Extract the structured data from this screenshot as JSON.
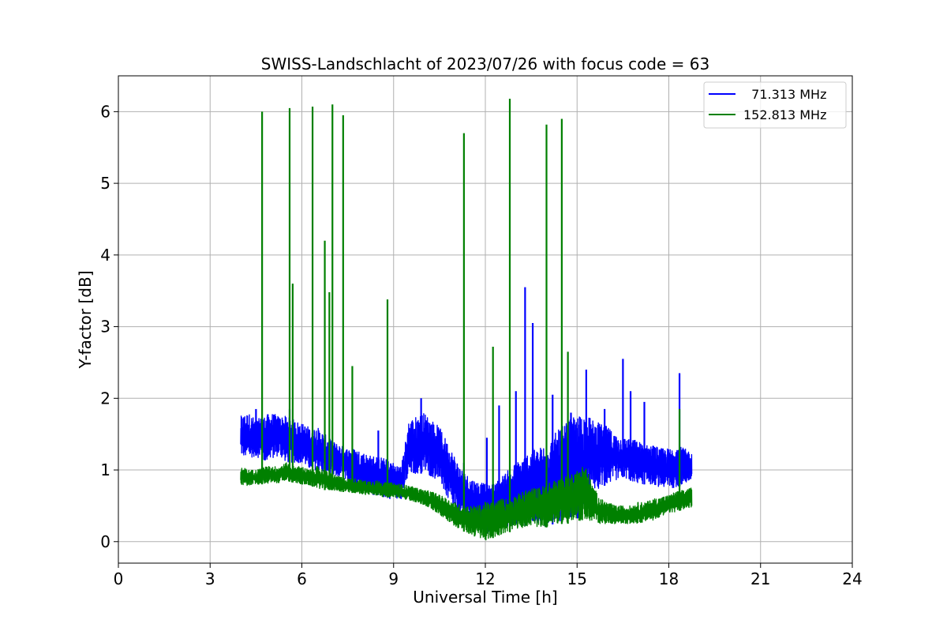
{
  "chart_data": {
    "type": "line",
    "title": "SWISS-Landschlacht of 2023/07/26 with focus code = 63",
    "xlabel": "Universal Time [h]",
    "ylabel": "Y-factor [dB]",
    "xlim": [
      0,
      24
    ],
    "ylim": [
      -0.3,
      6.5
    ],
    "xticks": [
      0,
      3,
      6,
      9,
      12,
      15,
      18,
      21,
      24
    ],
    "yticks": [
      0,
      1,
      2,
      3,
      4,
      5,
      6
    ],
    "grid": true,
    "legend_position": "top-right",
    "series": [
      {
        "name": "  71.313 MHz",
        "color": "#0000ff",
        "x": [
          4.0,
          4.25,
          4.5,
          4.75,
          5.0,
          5.25,
          5.5,
          5.75,
          6.0,
          6.25,
          6.5,
          6.75,
          7.0,
          7.25,
          7.5,
          7.75,
          8.0,
          8.25,
          8.5,
          8.75,
          9.0,
          9.25,
          9.5,
          9.75,
          10.0,
          10.25,
          10.5,
          10.75,
          11.0,
          11.25,
          11.5,
          11.75,
          12.0,
          12.25,
          12.5,
          12.75,
          13.0,
          13.25,
          13.5,
          13.75,
          14.0,
          14.25,
          14.5,
          14.75,
          15.0,
          15.25,
          15.5,
          15.75,
          16.0,
          16.25,
          16.5,
          16.75,
          17.0,
          17.25,
          17.5,
          17.75,
          18.0,
          18.25,
          18.5,
          18.75
        ],
        "y_low": [
          1.2,
          1.15,
          1.2,
          1.1,
          1.15,
          1.2,
          1.1,
          1.1,
          1.1,
          1.0,
          1.0,
          0.95,
          0.9,
          0.9,
          0.8,
          0.75,
          0.7,
          0.65,
          0.65,
          0.6,
          0.6,
          0.6,
          0.9,
          0.95,
          0.95,
          0.9,
          0.85,
          0.6,
          0.4,
          0.3,
          0.25,
          0.15,
          0.1,
          0.15,
          0.2,
          0.2,
          0.25,
          0.2,
          0.3,
          0.25,
          0.2,
          0.25,
          0.3,
          0.35,
          0.3,
          0.5,
          0.7,
          0.75,
          0.8,
          0.85,
          0.9,
          0.85,
          0.8,
          0.8,
          0.8,
          0.75,
          0.75,
          0.75,
          0.8,
          0.85
        ],
        "y_high": [
          1.75,
          1.8,
          1.7,
          1.75,
          1.8,
          1.75,
          1.75,
          1.7,
          1.65,
          1.6,
          1.6,
          1.5,
          1.4,
          1.35,
          1.3,
          1.3,
          1.25,
          1.2,
          1.2,
          1.15,
          1.1,
          1.05,
          1.7,
          1.75,
          1.8,
          1.7,
          1.6,
          1.4,
          1.2,
          1.0,
          0.9,
          0.85,
          0.8,
          0.8,
          0.9,
          1.0,
          1.1,
          1.2,
          1.3,
          1.3,
          1.4,
          1.5,
          1.6,
          1.7,
          1.75,
          1.8,
          1.7,
          1.65,
          1.6,
          1.5,
          1.45,
          1.45,
          1.4,
          1.35,
          1.35,
          1.3,
          1.3,
          1.35,
          1.3,
          1.25
        ],
        "spikes": [
          [
            4.5,
            1.85
          ],
          [
            5.6,
            1.85
          ],
          [
            8.5,
            1.55
          ],
          [
            9.9,
            2.0
          ],
          [
            11.3,
            1.1
          ],
          [
            12.05,
            1.45
          ],
          [
            12.45,
            1.9
          ],
          [
            13.0,
            2.1
          ],
          [
            13.3,
            3.55
          ],
          [
            13.55,
            3.05
          ],
          [
            14.2,
            2.05
          ],
          [
            14.8,
            1.8
          ],
          [
            15.3,
            2.4
          ],
          [
            15.9,
            1.85
          ],
          [
            16.5,
            2.55
          ],
          [
            16.75,
            2.1
          ],
          [
            17.2,
            1.95
          ],
          [
            18.35,
            2.35
          ]
        ]
      },
      {
        "name": "152.813 MHz",
        "color": "#008000",
        "x": [
          4.0,
          4.25,
          4.5,
          4.75,
          5.0,
          5.25,
          5.5,
          5.75,
          6.0,
          6.25,
          6.5,
          6.75,
          7.0,
          7.25,
          7.5,
          7.75,
          8.0,
          8.25,
          8.5,
          8.75,
          9.0,
          9.25,
          9.5,
          9.75,
          10.0,
          10.25,
          10.5,
          10.75,
          11.0,
          11.25,
          11.5,
          11.75,
          12.0,
          12.25,
          12.5,
          12.75,
          13.0,
          13.25,
          13.5,
          13.75,
          14.0,
          14.25,
          14.5,
          14.75,
          15.0,
          15.25,
          15.5,
          15.75,
          16.0,
          16.25,
          16.5,
          16.75,
          17.0,
          17.25,
          17.5,
          17.75,
          18.0,
          18.25,
          18.5,
          18.75
        ],
        "y_low": [
          0.8,
          0.78,
          0.8,
          0.8,
          0.82,
          0.82,
          0.85,
          0.82,
          0.8,
          0.78,
          0.75,
          0.72,
          0.72,
          0.7,
          0.68,
          0.68,
          0.66,
          0.65,
          0.64,
          0.62,
          0.62,
          0.6,
          0.58,
          0.55,
          0.5,
          0.45,
          0.38,
          0.3,
          0.22,
          0.15,
          0.1,
          0.05,
          0.02,
          0.05,
          0.1,
          0.12,
          0.18,
          0.2,
          0.22,
          0.2,
          0.2,
          0.25,
          0.25,
          0.25,
          0.28,
          0.3,
          0.28,
          0.25,
          0.25,
          0.25,
          0.25,
          0.25,
          0.25,
          0.28,
          0.3,
          0.35,
          0.4,
          0.42,
          0.45,
          0.48
        ],
        "y_high": [
          1.05,
          1.0,
          1.0,
          1.05,
          1.05,
          1.05,
          1.1,
          1.05,
          1.05,
          1.0,
          1.05,
          1.0,
          0.95,
          0.9,
          0.88,
          0.88,
          0.85,
          0.85,
          0.85,
          0.82,
          0.82,
          0.8,
          0.78,
          0.75,
          0.72,
          0.7,
          0.65,
          0.6,
          0.55,
          0.5,
          0.5,
          0.5,
          0.55,
          0.55,
          0.6,
          0.6,
          0.65,
          0.7,
          0.75,
          0.75,
          0.8,
          0.85,
          0.9,
          0.95,
          1.0,
          1.1,
          0.8,
          0.6,
          0.55,
          0.5,
          0.5,
          0.5,
          0.55,
          0.55,
          0.6,
          0.62,
          0.65,
          0.7,
          0.72,
          0.75
        ],
        "spikes": [
          [
            4.7,
            6.0
          ],
          [
            5.6,
            6.05
          ],
          [
            5.7,
            3.6
          ],
          [
            6.35,
            6.07
          ],
          [
            6.75,
            4.2
          ],
          [
            6.9,
            3.48
          ],
          [
            7.0,
            6.1
          ],
          [
            7.35,
            5.95
          ],
          [
            7.65,
            2.45
          ],
          [
            8.8,
            3.38
          ],
          [
            11.3,
            5.7
          ],
          [
            12.25,
            2.72
          ],
          [
            12.8,
            6.18
          ],
          [
            14.0,
            5.82
          ],
          [
            14.5,
            5.9
          ],
          [
            14.7,
            2.65
          ],
          [
            18.35,
            1.85
          ]
        ]
      }
    ]
  }
}
